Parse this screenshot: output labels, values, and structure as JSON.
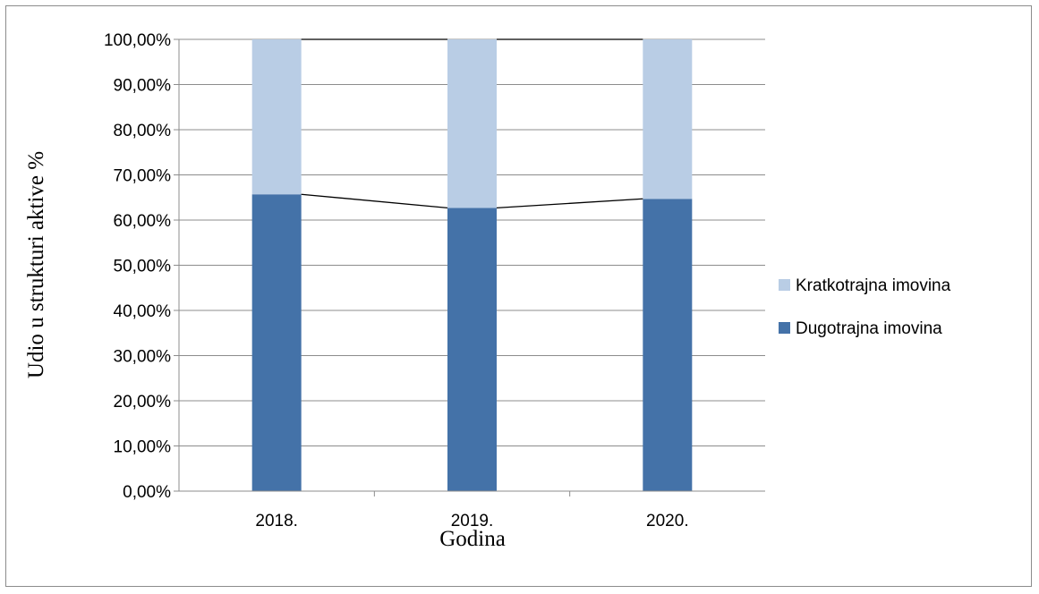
{
  "chart_data": {
    "type": "bar",
    "stacked": true,
    "categories": [
      "2018.",
      "2019.",
      "2020."
    ],
    "series": [
      {
        "name": "Dugotrajna imovina",
        "values": [
          65.7,
          62.7,
          64.7
        ],
        "color": "#4472a8"
      },
      {
        "name": "Kratkotrajna imovina",
        "values": [
          34.3,
          37.3,
          35.3
        ],
        "color": "#b9cde5"
      }
    ],
    "title": "",
    "xlabel": "Godina",
    "ylabel": "Udio u strukturi aktive %",
    "ylim": [
      0,
      100
    ],
    "yticks": [
      "0,00%",
      "10,00%",
      "20,00%",
      "30,00%",
      "40,00%",
      "50,00%",
      "60,00%",
      "70,00%",
      "80,00%",
      "90,00%",
      "100,00%"
    ],
    "grid": true,
    "series_lines": true,
    "legend_position": "right"
  }
}
